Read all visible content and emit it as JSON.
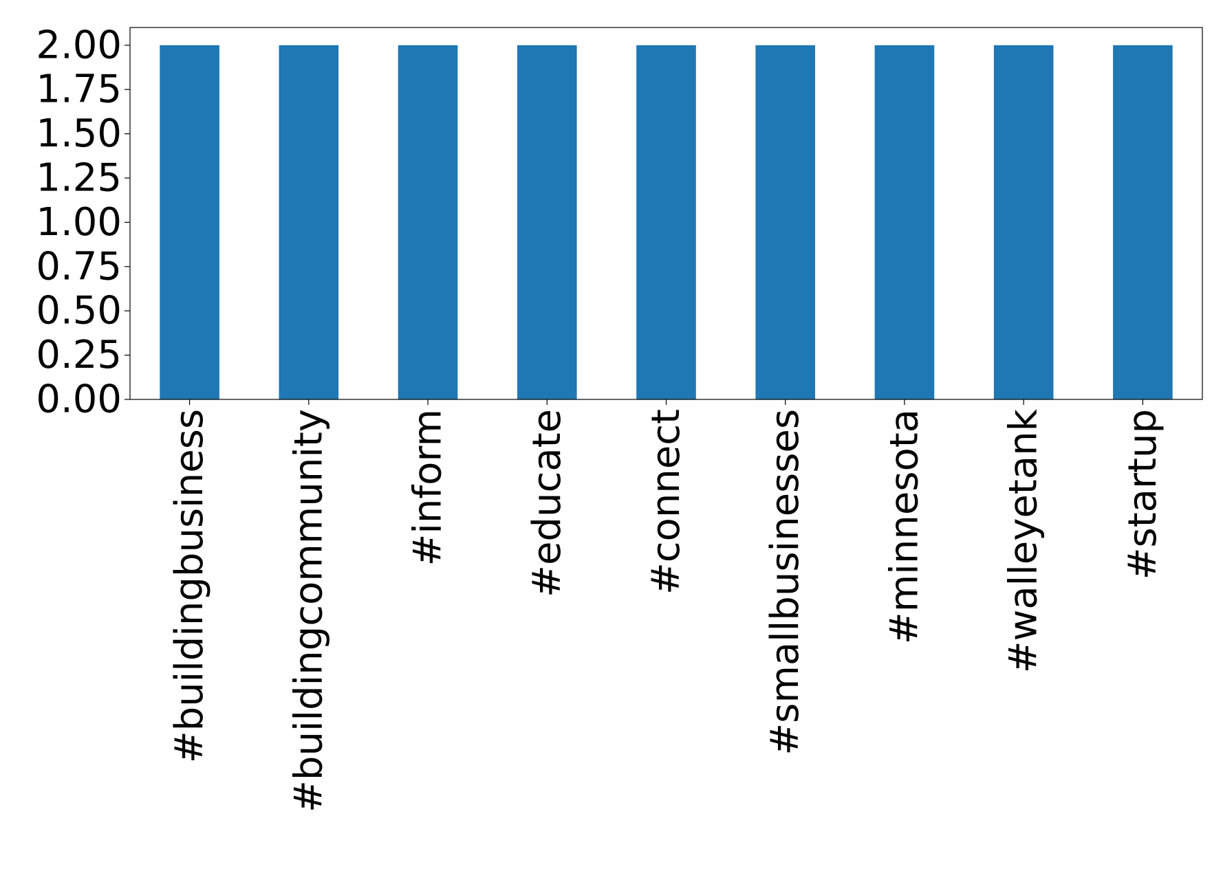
{
  "chart_data": {
    "type": "bar",
    "categories": [
      "#buildingbusiness",
      "#buildingcommunity",
      "#inform",
      "#educate",
      "#connect",
      "#smallbusinesses",
      "#minnesota",
      "#walleyetank",
      "#startup"
    ],
    "values": [
      2,
      2,
      2,
      2,
      2,
      2,
      2,
      2,
      2
    ],
    "color": "#1f77b4",
    "ylim": [
      0,
      2.1
    ],
    "yticks": [
      {
        "value": 0,
        "label": "0.00"
      },
      {
        "value": 0.25,
        "label": "0.25"
      },
      {
        "value": 0.5,
        "label": "0.50"
      },
      {
        "value": 0.75,
        "label": "0.75"
      },
      {
        "value": 1,
        "label": "1.00"
      },
      {
        "value": 1.25,
        "label": "1.25"
      },
      {
        "value": 1.5,
        "label": "1.50"
      },
      {
        "value": 1.75,
        "label": "1.75"
      },
      {
        "value": 2,
        "label": "2.00"
      }
    ],
    "grid": false
  }
}
